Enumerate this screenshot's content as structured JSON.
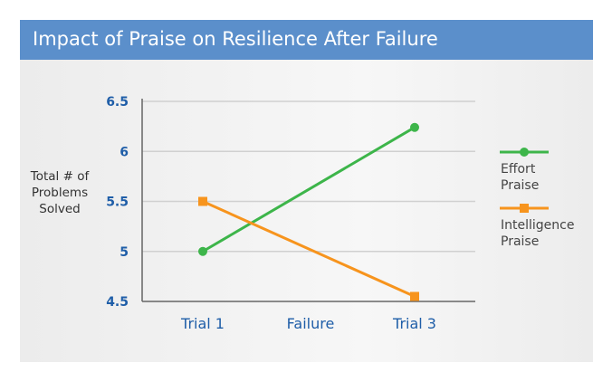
{
  "chart_data": {
    "type": "line",
    "title": "Impact of Praise on Resilience After Failure",
    "ylabel": "Total # of Problems Solved",
    "categories": [
      "Trial 1",
      "Failure",
      "Trial 3"
    ],
    "yticks": [
      "4.5",
      "5",
      "5.5",
      "6",
      "6.5"
    ],
    "ylim": [
      4.5,
      6.5
    ],
    "grid": true,
    "legend_position": "right",
    "series": [
      {
        "name": "Effort Praise",
        "legend_lines": [
          "Effort",
          "Praise"
        ],
        "color": "#3db54a",
        "marker": "circle",
        "values": [
          5.0,
          null,
          6.24
        ]
      },
      {
        "name": "Intelligence Praise",
        "legend_lines": [
          "Intelligence",
          "Praise"
        ],
        "color": "#f7941d",
        "marker": "square",
        "values": [
          5.5,
          null,
          4.55
        ]
      }
    ],
    "colors": {
      "title_bar": "#5b8fcb",
      "axis_text": "#1f5ea8"
    }
  }
}
